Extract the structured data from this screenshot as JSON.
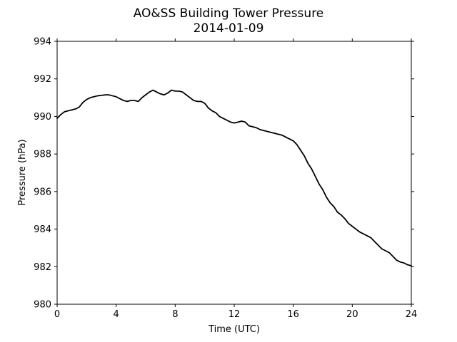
{
  "chart_data": {
    "type": "line",
    "title": "AO&SS Building Tower Pressure",
    "subtitle": "2014-01-09",
    "xlabel": "Time (UTC)",
    "ylabel": "Pressure (hPa)",
    "xlim": [
      0,
      24
    ],
    "ylim": [
      980,
      994
    ],
    "xticks": [
      0,
      4,
      8,
      12,
      16,
      20,
      24
    ],
    "yticks": [
      980,
      982,
      984,
      986,
      988,
      990,
      992,
      994
    ],
    "grid": false,
    "line_color": "#000000",
    "series": [
      {
        "x": [
          0,
          0.25,
          0.5,
          0.75,
          1,
          1.25,
          1.5,
          1.75,
          2,
          2.25,
          2.5,
          2.75,
          3,
          3.25,
          3.5,
          3.75,
          4,
          4.25,
          4.5,
          4.75,
          5,
          5.25,
          5.5,
          5.75,
          6,
          6.25,
          6.5,
          6.75,
          7,
          7.25,
          7.5,
          7.75,
          8,
          8.25,
          8.5,
          8.75,
          9,
          9.25,
          9.5,
          9.75,
          10,
          10.25,
          10.5,
          10.75,
          11,
          11.25,
          11.5,
          11.75,
          12,
          12.25,
          12.5,
          12.75,
          13,
          13.25,
          13.5,
          13.75,
          14,
          14.25,
          14.5,
          14.75,
          15,
          15.25,
          15.5,
          15.75,
          16,
          16.25,
          16.5,
          16.75,
          17,
          17.25,
          17.5,
          17.75,
          18,
          18.25,
          18.5,
          18.75,
          19,
          19.25,
          19.5,
          19.75,
          20,
          20.25,
          20.5,
          20.75,
          21,
          21.25,
          21.5,
          21.75,
          22,
          22.25,
          22.5,
          22.75,
          23,
          23.25,
          23.5,
          23.75,
          24
        ],
        "y": [
          989.9,
          990.1,
          990.25,
          990.3,
          990.35,
          990.4,
          990.5,
          990.75,
          990.9,
          991.0,
          991.05,
          991.1,
          991.12,
          991.15,
          991.15,
          991.1,
          991.05,
          990.95,
          990.85,
          990.8,
          990.85,
          990.85,
          990.8,
          991.0,
          991.15,
          991.3,
          991.4,
          991.3,
          991.2,
          991.15,
          991.25,
          991.4,
          991.35,
          991.35,
          991.3,
          991.15,
          991.0,
          990.85,
          990.8,
          990.8,
          990.7,
          990.45,
          990.3,
          990.2,
          990.0,
          989.9,
          989.8,
          989.7,
          989.65,
          989.7,
          989.75,
          989.7,
          989.5,
          989.45,
          989.4,
          989.3,
          989.25,
          989.2,
          989.15,
          989.1,
          989.05,
          989.0,
          988.9,
          988.8,
          988.7,
          988.5,
          988.2,
          987.9,
          987.5,
          987.2,
          986.8,
          986.4,
          986.1,
          985.7,
          985.4,
          985.2,
          984.9,
          984.75,
          984.55,
          984.3,
          984.15,
          984.0,
          983.85,
          983.75,
          983.65,
          983.55,
          983.35,
          983.15,
          982.95,
          982.85,
          982.75,
          982.55,
          982.35,
          982.25,
          982.2,
          982.1,
          982.05
        ]
      }
    ]
  }
}
